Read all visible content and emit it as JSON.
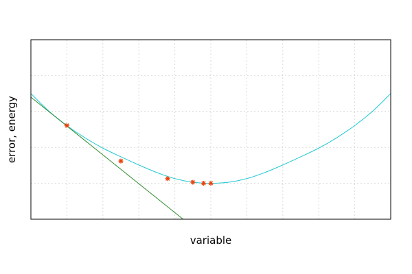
{
  "chart_data": {
    "type": "line",
    "title": "",
    "xlabel": "variable",
    "ylabel": "error, energy",
    "xlim": [
      -1.0,
      9.0
    ],
    "ylim": [
      0.0,
      5.0
    ],
    "grid": true,
    "x_grid": [
      0,
      1,
      2,
      3,
      4,
      5,
      6,
      7,
      8
    ],
    "y_grid": [
      1,
      2,
      3,
      4
    ],
    "show_tick_labels": false,
    "colors": {
      "curve": "#1fc8d2",
      "tangent": "#2e8b2e",
      "points": "#e8410a",
      "grid": "#d9d9d9",
      "frame": "#000000"
    },
    "series": [
      {
        "kind": "curve",
        "x": [
          -1.0,
          -0.5,
          0.0,
          0.5,
          1.0,
          1.5,
          2.0,
          2.5,
          3.0,
          3.5,
          4.0,
          4.5,
          5.0,
          5.5,
          6.0,
          6.5,
          7.0,
          7.5,
          8.0,
          8.5,
          9.0
        ],
        "values": [
          3.5,
          3.01,
          2.61,
          2.27,
          1.98,
          1.74,
          1.51,
          1.3,
          1.13,
          1.03,
          1.0,
          1.03,
          1.13,
          1.3,
          1.51,
          1.74,
          1.98,
          2.27,
          2.61,
          3.01,
          3.5
        ]
      },
      {
        "kind": "tangent",
        "x": [
          -1.0,
          3.23
        ],
        "values": [
          3.4,
          0.0
        ]
      },
      {
        "kind": "points",
        "x": [
          0.0,
          1.5,
          2.8,
          3.5,
          3.8,
          4.0
        ],
        "values": [
          2.61,
          1.62,
          1.13,
          1.03,
          1.0,
          1.0
        ]
      }
    ]
  }
}
